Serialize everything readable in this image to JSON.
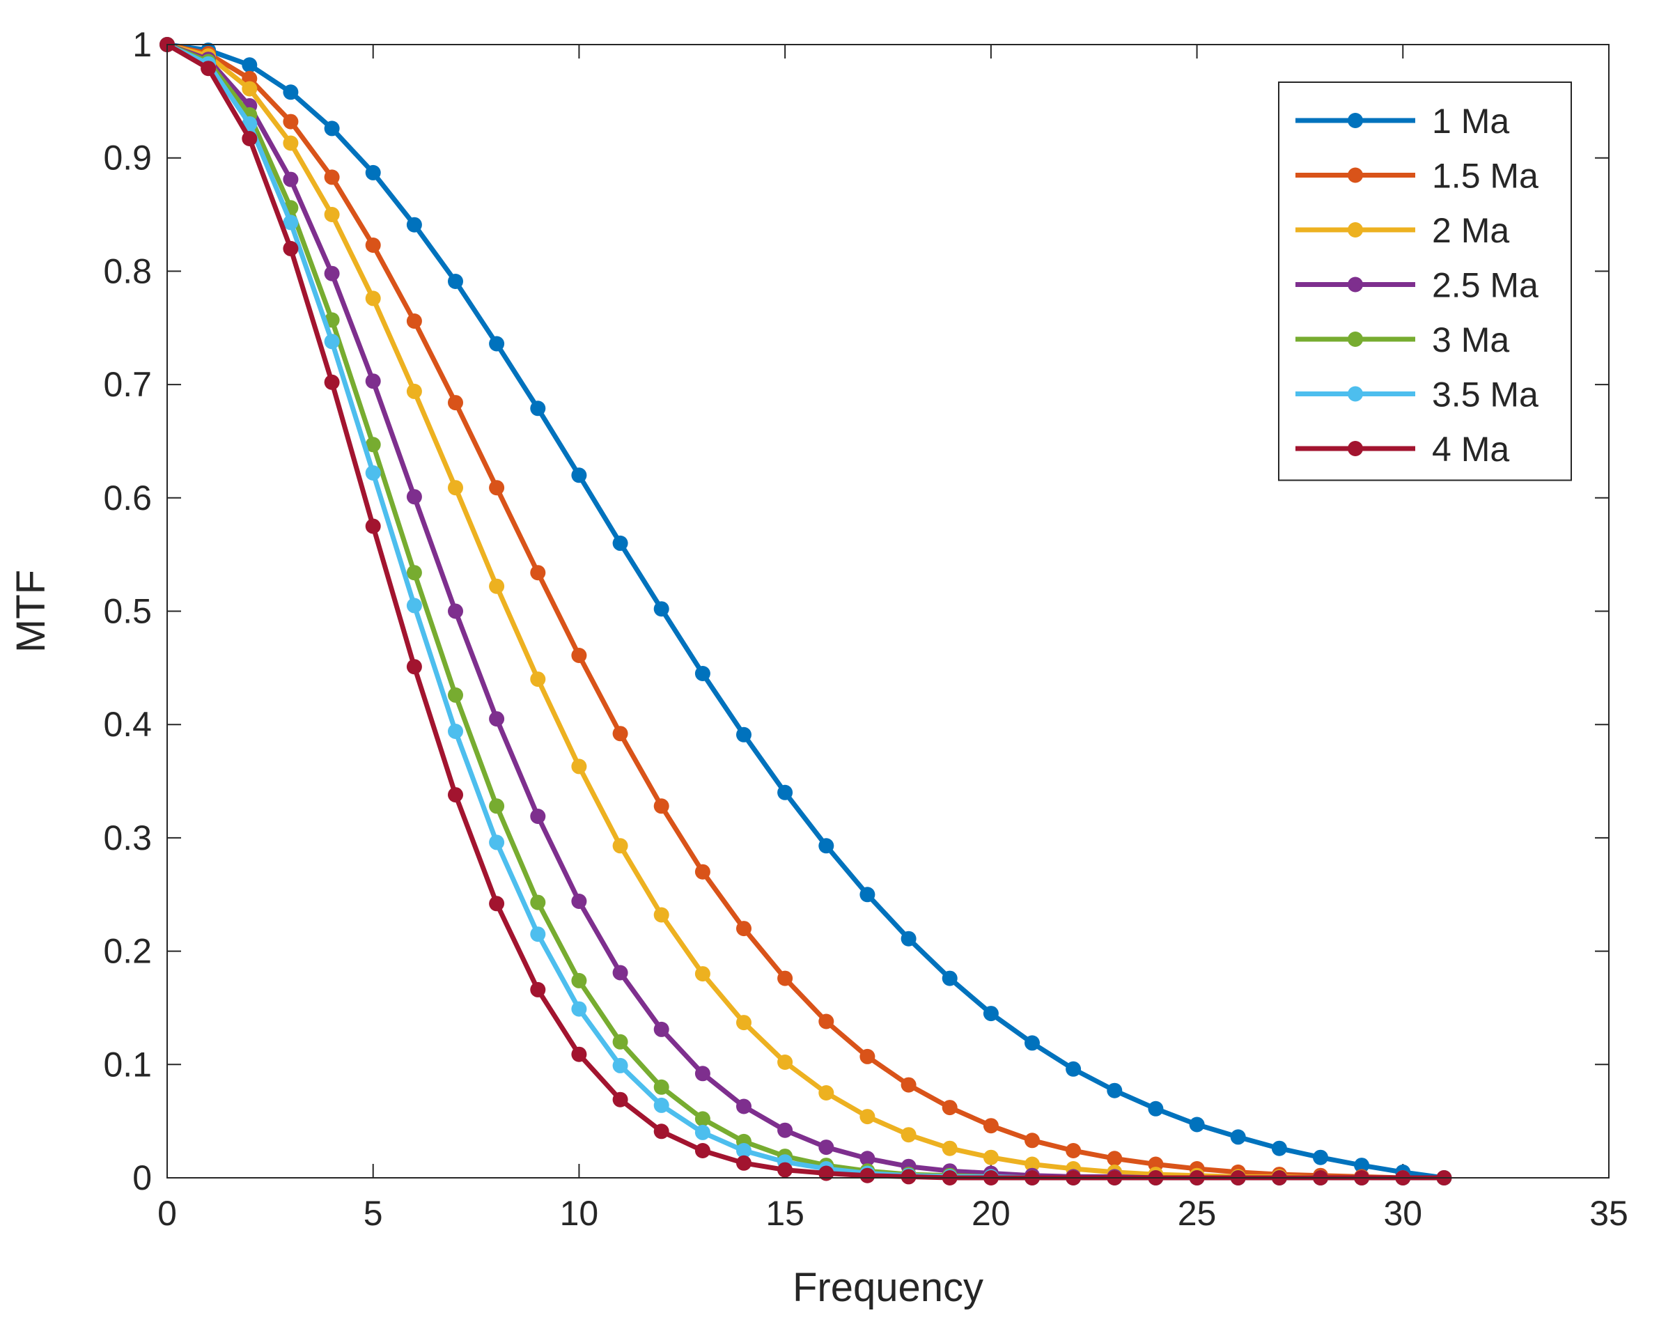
{
  "chart_data": {
    "type": "line",
    "title": "",
    "xlabel": "Frequency",
    "ylabel": "MTF",
    "xlim": [
      0,
      35
    ],
    "ylim": [
      0,
      1
    ],
    "x_ticks": [
      0,
      5,
      10,
      15,
      20,
      25,
      30,
      35
    ],
    "y_ticks": [
      0,
      0.1,
      0.2,
      0.3,
      0.4,
      0.5,
      0.6,
      0.7,
      0.8,
      0.9,
      1
    ],
    "x_tick_labels": [
      "0",
      "5",
      "10",
      "15",
      "20",
      "25",
      "30",
      "35"
    ],
    "y_tick_labels": [
      "0",
      "0.1",
      "0.2",
      "0.3",
      "0.4",
      "0.5",
      "0.6",
      "0.7",
      "0.8",
      "0.9",
      "1"
    ],
    "grid": false,
    "legend_position": "top-right",
    "x": [
      0,
      1,
      2,
      3,
      4,
      5,
      6,
      7,
      8,
      9,
      10,
      11,
      12,
      13,
      14,
      15,
      16,
      17,
      18,
      19,
      20,
      21,
      22,
      23,
      24,
      25,
      26,
      27,
      28,
      29,
      30,
      31
    ],
    "series": [
      {
        "name": "1 Ma",
        "color": "#0072BD",
        "values": [
          1.0,
          0.995,
          0.982,
          0.958,
          0.926,
          0.887,
          0.841,
          0.791,
          0.736,
          0.679,
          0.62,
          0.56,
          0.502,
          0.445,
          0.391,
          0.34,
          0.293,
          0.25,
          0.211,
          0.176,
          0.145,
          0.119,
          0.096,
          0.077,
          0.061,
          0.047,
          0.036,
          0.026,
          0.018,
          0.011,
          0.005,
          0.0
        ]
      },
      {
        "name": "1.5 Ma",
        "color": "#D95319",
        "values": [
          1.0,
          0.992,
          0.97,
          0.932,
          0.883,
          0.823,
          0.756,
          0.684,
          0.609,
          0.534,
          0.461,
          0.392,
          0.328,
          0.27,
          0.22,
          0.176,
          0.138,
          0.107,
          0.082,
          0.062,
          0.046,
          0.033,
          0.024,
          0.017,
          0.012,
          0.008,
          0.005,
          0.003,
          0.002,
          0.001,
          0.0,
          0.0
        ]
      },
      {
        "name": "2 Ma",
        "color": "#EDB120",
        "values": [
          1.0,
          0.99,
          0.961,
          0.913,
          0.85,
          0.776,
          0.694,
          0.609,
          0.522,
          0.44,
          0.363,
          0.293,
          0.232,
          0.18,
          0.137,
          0.102,
          0.075,
          0.054,
          0.038,
          0.026,
          0.018,
          0.012,
          0.008,
          0.005,
          0.003,
          0.002,
          0.001,
          0.001,
          0.0,
          0.0,
          0.0,
          0.0
        ]
      },
      {
        "name": "2.5 Ma",
        "color": "#7E2F8E",
        "values": [
          1.0,
          0.987,
          0.946,
          0.881,
          0.798,
          0.703,
          0.601,
          0.5,
          0.405,
          0.319,
          0.244,
          0.181,
          0.131,
          0.092,
          0.063,
          0.042,
          0.027,
          0.017,
          0.01,
          0.006,
          0.004,
          0.002,
          0.001,
          0.001,
          0.0,
          0.0,
          0.0,
          0.0,
          0.0,
          0.0,
          0.0,
          0.0
        ]
      },
      {
        "name": "3 Ma",
        "color": "#77AC30",
        "values": [
          1.0,
          0.985,
          0.938,
          0.856,
          0.757,
          0.647,
          0.534,
          0.426,
          0.328,
          0.243,
          0.174,
          0.12,
          0.08,
          0.052,
          0.032,
          0.019,
          0.011,
          0.006,
          0.003,
          0.002,
          0.001,
          0.0,
          0.0,
          0.0,
          0.0,
          0.0,
          0.0,
          0.0,
          0.0,
          0.0,
          0.0,
          0.0
        ]
      },
      {
        "name": "3.5 Ma",
        "color": "#4DBEEE",
        "values": [
          1.0,
          0.983,
          0.93,
          0.843,
          0.738,
          0.622,
          0.505,
          0.394,
          0.296,
          0.215,
          0.149,
          0.099,
          0.064,
          0.04,
          0.024,
          0.014,
          0.008,
          0.004,
          0.002,
          0.001,
          0.001,
          0.0,
          0.0,
          0.0,
          0.0,
          0.0,
          0.0,
          0.0,
          0.0,
          0.0,
          0.0,
          0.0
        ]
      },
      {
        "name": "4 Ma",
        "color": "#A2142F",
        "values": [
          1.0,
          0.979,
          0.917,
          0.82,
          0.702,
          0.575,
          0.451,
          0.338,
          0.242,
          0.166,
          0.109,
          0.069,
          0.041,
          0.024,
          0.013,
          0.007,
          0.004,
          0.002,
          0.001,
          0.0,
          0.0,
          0.0,
          0.0,
          0.0,
          0.0,
          0.0,
          0.0,
          0.0,
          0.0,
          0.0,
          0.0,
          0.0
        ]
      }
    ]
  }
}
